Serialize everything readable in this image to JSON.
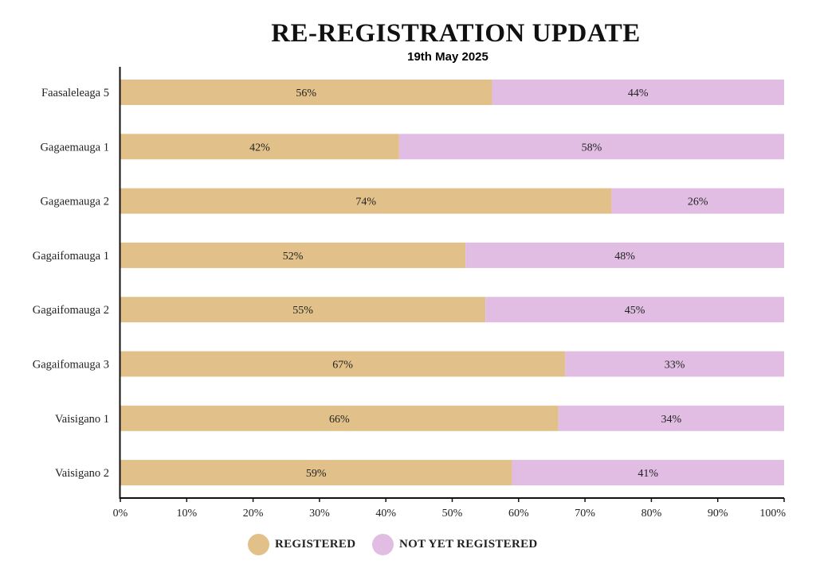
{
  "colors": {
    "registered": "#e1c089",
    "not_registered": "#e1bde3",
    "axis": "#111111"
  },
  "chart_data": {
    "type": "bar",
    "orientation": "horizontal",
    "stacked": true,
    "percent": true,
    "title": "RE-REGISTRATION UPDATE",
    "subtitle": "19th May 2025",
    "categories": [
      "Faasaleleaga 5",
      "Gagaemauga 1",
      "Gagaemauga 2",
      "Gagaifomauga 1",
      "Gagaifomauga 2",
      "Gagaifomauga 3",
      "Vaisigano 1",
      "Vaisigano 2"
    ],
    "series": [
      {
        "name": "REGISTERED",
        "values": [
          56,
          42,
          74,
          52,
          55,
          67,
          66,
          59
        ]
      },
      {
        "name": "NOT YET REGISTERED",
        "values": [
          44,
          58,
          26,
          48,
          45,
          33,
          34,
          41
        ]
      }
    ],
    "data_label_suffix": "%",
    "xlim": [
      0,
      100
    ],
    "xticks": [
      "0%",
      "10%",
      "20%",
      "30%",
      "40%",
      "50%",
      "60%",
      "70%",
      "80%",
      "90%",
      "100%"
    ],
    "grid": false,
    "legend_position": "bottom"
  }
}
